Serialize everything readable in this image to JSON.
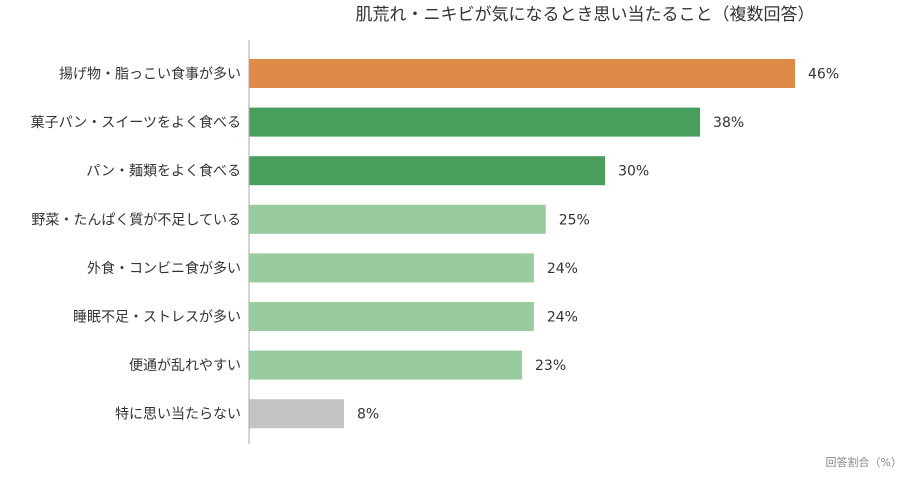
{
  "chart_data": {
    "type": "bar",
    "orientation": "horizontal",
    "title": "肌荒れ・ニキビが気になるとき思い当たること（複数回答）",
    "xlabel": "回答割合（%）",
    "ylabel": "",
    "xlim": [
      0,
      50
    ],
    "grid": false,
    "legend": "none",
    "value_suffix": "%",
    "categories": [
      "揚げ物・脂っこい食事が多い",
      "菓子パン・スイーツをよく食べる",
      "パン・麺類をよく食べる",
      "野菜・たんぱく質が不足している",
      "外食・コンビニ食が多い",
      "睡眠不足・ストレスが多い",
      "便通が乱れやすい",
      "特に思い当たらない"
    ],
    "values": [
      46,
      38,
      30,
      25,
      24,
      24,
      23,
      8
    ],
    "bar_colors": [
      "#E08A48",
      "#4A9E5C",
      "#4A9E5C",
      "#98CC9E",
      "#98CC9E",
      "#98CC9E",
      "#98CC9E",
      "#C4C4C6"
    ]
  }
}
